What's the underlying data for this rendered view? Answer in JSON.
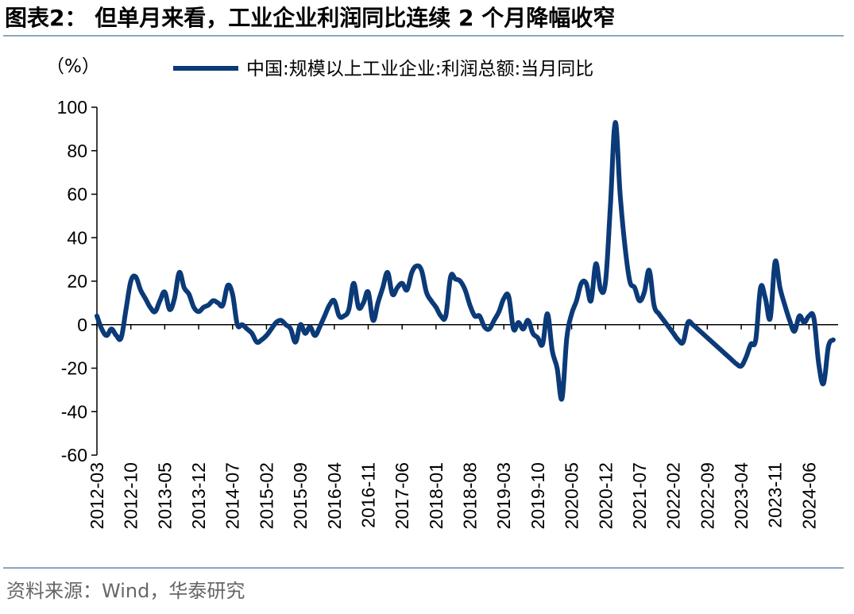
{
  "figure": {
    "title": "图表2： 但单月来看，工业企业利润同比连续 2 个月降幅收窄",
    "source": "资料来源：Wind，华泰研究"
  },
  "colors": {
    "series": "#0b3a78",
    "axis": "#000000",
    "rule": "#8aa6c1"
  },
  "chart_data": {
    "type": "line",
    "title": "",
    "xlabel": "",
    "ylabel": "",
    "unit_label": "（%）",
    "ylim": [
      -60,
      100
    ],
    "yticks": [
      "100",
      "80",
      "60",
      "40",
      "20",
      "0",
      "-20",
      "-40",
      "-60"
    ],
    "xlim": [
      "2012-03",
      "2024-12"
    ],
    "xticks": [
      "2012-03",
      "2012-10",
      "2013-05",
      "2013-12",
      "2014-07",
      "2015-02",
      "2015-09",
      "2016-04",
      "2016-11",
      "2017-06",
      "2018-01",
      "2018-08",
      "2019-03",
      "2019-10",
      "2020-05",
      "2020-12",
      "2021-07",
      "2022-02",
      "2022-09",
      "2023-04",
      "2023-11",
      "2024-06"
    ],
    "grid": false,
    "legend": "top",
    "series": [
      {
        "name": "中国:规模以上工业企业:利润总额:当月同比",
        "points": [
          [
            "2012-03",
            4
          ],
          [
            "2012-04",
            -2
          ],
          [
            "2012-05",
            -5
          ],
          [
            "2012-06",
            -2
          ],
          [
            "2012-07",
            -5
          ],
          [
            "2012-08",
            -6
          ],
          [
            "2012-09",
            7
          ],
          [
            "2012-10",
            20
          ],
          [
            "2012-11",
            22
          ],
          [
            "2012-12",
            16
          ],
          [
            "2013-01",
            12
          ],
          [
            "2013-02",
            8
          ],
          [
            "2013-03",
            6
          ],
          [
            "2013-04",
            11
          ],
          [
            "2013-05",
            15
          ],
          [
            "2013-06",
            7
          ],
          [
            "2013-07",
            12
          ],
          [
            "2013-08",
            24
          ],
          [
            "2013-09",
            17
          ],
          [
            "2013-10",
            14
          ],
          [
            "2013-11",
            8
          ],
          [
            "2013-12",
            6
          ],
          [
            "2014-01",
            8
          ],
          [
            "2014-02",
            9
          ],
          [
            "2014-03",
            11
          ],
          [
            "2014-04",
            10
          ],
          [
            "2014-05",
            9
          ],
          [
            "2014-06",
            18
          ],
          [
            "2014-07",
            14
          ],
          [
            "2014-08",
            0
          ],
          [
            "2014-09",
            0
          ],
          [
            "2014-10",
            -2
          ],
          [
            "2014-11",
            -4
          ],
          [
            "2014-12",
            -8
          ],
          [
            "2015-01",
            -7
          ],
          [
            "2015-02",
            -5
          ],
          [
            "2015-03",
            -2
          ],
          [
            "2015-04",
            1
          ],
          [
            "2015-05",
            2
          ],
          [
            "2015-06",
            0
          ],
          [
            "2015-07",
            -2
          ],
          [
            "2015-08",
            -8
          ],
          [
            "2015-09",
            0
          ],
          [
            "2015-10",
            -4
          ],
          [
            "2015-11",
            -1
          ],
          [
            "2015-12",
            -5
          ],
          [
            "2016-01",
            -1
          ],
          [
            "2016-02",
            4
          ],
          [
            "2016-03",
            9
          ],
          [
            "2016-04",
            11
          ],
          [
            "2016-05",
            4
          ],
          [
            "2016-06",
            4
          ],
          [
            "2016-07",
            7
          ],
          [
            "2016-08",
            19
          ],
          [
            "2016-09",
            8
          ],
          [
            "2016-10",
            10
          ],
          [
            "2016-11",
            15
          ],
          [
            "2016-12",
            2
          ],
          [
            "2017-01",
            10
          ],
          [
            "2017-02",
            17
          ],
          [
            "2017-03",
            24
          ],
          [
            "2017-04",
            14
          ],
          [
            "2017-05",
            17
          ],
          [
            "2017-06",
            19
          ],
          [
            "2017-07",
            16
          ],
          [
            "2017-08",
            24
          ],
          [
            "2017-09",
            27
          ],
          [
            "2017-10",
            25
          ],
          [
            "2017-11",
            15
          ],
          [
            "2017-12",
            11
          ],
          [
            "2018-01",
            8
          ],
          [
            "2018-02",
            4
          ],
          [
            "2018-03",
            4
          ],
          [
            "2018-04",
            22
          ],
          [
            "2018-05",
            21
          ],
          [
            "2018-06",
            20
          ],
          [
            "2018-07",
            16
          ],
          [
            "2018-08",
            9
          ],
          [
            "2018-09",
            4
          ],
          [
            "2018-10",
            4
          ],
          [
            "2018-11",
            -1
          ],
          [
            "2018-12",
            -2
          ],
          [
            "2019-01",
            2
          ],
          [
            "2019-02",
            6
          ],
          [
            "2019-03",
            12
          ],
          [
            "2019-04",
            13
          ],
          [
            "2019-05",
            -2
          ],
          [
            "2019-06",
            1
          ],
          [
            "2019-07",
            -2
          ],
          [
            "2019-08",
            2
          ],
          [
            "2019-09",
            -4
          ],
          [
            "2019-10",
            -6
          ],
          [
            "2019-11",
            -9
          ],
          [
            "2019-12",
            5
          ],
          [
            "2020-01",
            -12
          ],
          [
            "2020-02",
            -20
          ],
          [
            "2020-03",
            -34
          ],
          [
            "2020-04",
            -6
          ],
          [
            "2020-05",
            5
          ],
          [
            "2020-06",
            11
          ],
          [
            "2020-07",
            19
          ],
          [
            "2020-08",
            19
          ],
          [
            "2020-09",
            11
          ],
          [
            "2020-10",
            28
          ],
          [
            "2020-11",
            16
          ],
          [
            "2020-12",
            20
          ],
          [
            "2021-01",
            55
          ],
          [
            "2021-02",
            93
          ],
          [
            "2021-03",
            60
          ],
          [
            "2021-04",
            36
          ],
          [
            "2021-05",
            20
          ],
          [
            "2021-06",
            17
          ],
          [
            "2021-07",
            11
          ],
          [
            "2021-08",
            15
          ],
          [
            "2021-09",
            25
          ],
          [
            "2021-10",
            9
          ],
          [
            "2021-11",
            5
          ],
          [
            "2021-12",
            2
          ],
          [
            "2022-01",
            -1
          ],
          [
            "2022-02",
            -4
          ],
          [
            "2022-03",
            -7
          ],
          [
            "2022-04",
            -8
          ],
          [
            "2022-05",
            1
          ],
          [
            "2022-06",
            0
          ],
          [
            "2022-07",
            -2
          ],
          [
            "2022-08",
            -4
          ],
          [
            "2022-09",
            -6
          ],
          [
            "2022-10",
            -8
          ],
          [
            "2022-11",
            -10
          ],
          [
            "2022-12",
            -12
          ],
          [
            "2023-01",
            -14
          ],
          [
            "2023-02",
            -16
          ],
          [
            "2023-03",
            -18
          ],
          [
            "2023-04",
            -19
          ],
          [
            "2023-05",
            -15
          ],
          [
            "2023-06",
            -9
          ],
          [
            "2023-07",
            -7
          ],
          [
            "2023-08",
            17
          ],
          [
            "2023-09",
            12
          ],
          [
            "2023-10",
            3
          ],
          [
            "2023-11",
            29
          ],
          [
            "2023-12",
            17
          ],
          [
            "2024-01",
            9
          ],
          [
            "2024-02",
            2
          ],
          [
            "2024-03",
            -3
          ],
          [
            "2024-04",
            4
          ],
          [
            "2024-05",
            1
          ],
          [
            "2024-06",
            4
          ],
          [
            "2024-07",
            3
          ],
          [
            "2024-08",
            -18
          ],
          [
            "2024-09",
            -27
          ],
          [
            "2024-10",
            -10
          ],
          [
            "2024-11",
            -7
          ]
        ]
      }
    ]
  }
}
